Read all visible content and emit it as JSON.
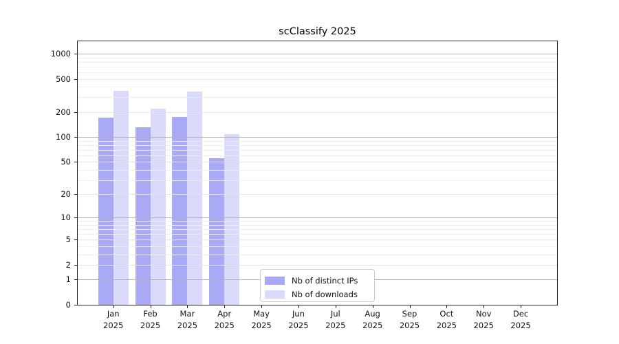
{
  "chart_data": {
    "type": "bar",
    "title": "scClassify 2025",
    "categories": [
      "Jan",
      "Feb",
      "Mar",
      "Apr",
      "May",
      "Jun",
      "Jul",
      "Aug",
      "Sep",
      "Oct",
      "Nov",
      "Dec"
    ],
    "x_year": "2025",
    "series": [
      {
        "name": "Nb of distinct IPs",
        "color": "#a9a9f5",
        "values": [
          170,
          130,
          175,
          55,
          null,
          null,
          null,
          null,
          null,
          null,
          null,
          null
        ]
      },
      {
        "name": "Nb of downloads",
        "color": "#dadafa",
        "values": [
          360,
          220,
          350,
          108,
          null,
          null,
          null,
          null,
          null,
          null,
          null,
          null
        ]
      }
    ],
    "y_ticks": [
      0,
      1,
      2,
      5,
      10,
      20,
      50,
      100,
      200,
      500,
      1000
    ],
    "y_scale": "log10(value+1)",
    "ylim": [
      0,
      1400
    ],
    "grid": true,
    "grid_on_top_of_bars": true,
    "legend_position": "lower-center",
    "colors": {
      "bar_dark": "#a9a9f5",
      "bar_light": "#dadafa",
      "grid_decade": "#b1b1b1",
      "grid_labeled": "#e4e4e4",
      "grid_minor": "#eeeeee",
      "axis": "#262626"
    }
  }
}
